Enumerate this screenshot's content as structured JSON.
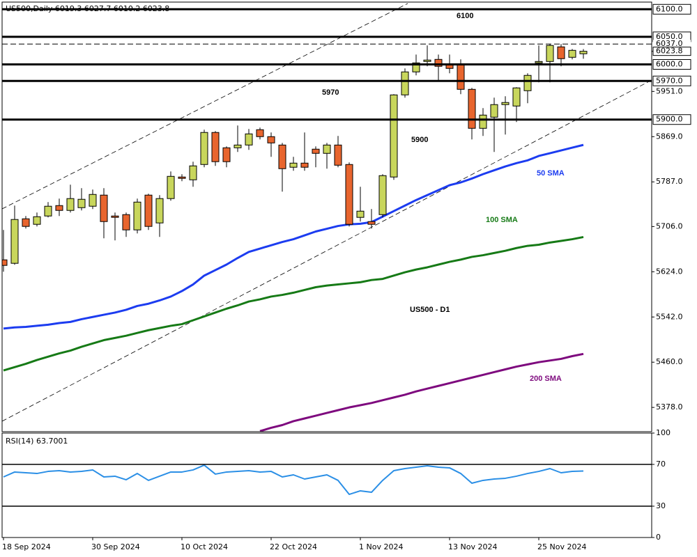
{
  "chart_data": [
    {
      "type": "candlestick",
      "header": "US500,Daily  6019.3 6027.7 6010.2 6023.8",
      "title": "US500 - D1",
      "annotations": [
        "6100",
        "5970",
        "5900"
      ],
      "categories": [
        "18 Sep 2024",
        null,
        null,
        null,
        null,
        null,
        null,
        null,
        "30 Sep 2024",
        null,
        null,
        null,
        null,
        null,
        null,
        null,
        "10 Oct 2024",
        null,
        null,
        null,
        null,
        null,
        null,
        null,
        "22 Oct 2024",
        null,
        null,
        null,
        null,
        null,
        null,
        null,
        "1 Nov 2024",
        null,
        null,
        null,
        null,
        null,
        null,
        null,
        "13 Nov 2024",
        null,
        null,
        null,
        null,
        null,
        null,
        null,
        "25 Nov 2024",
        null,
        null,
        null,
        null
      ],
      "open": [
        5645.6,
        5639.3,
        5720.0,
        5710.0,
        5725.1,
        5744.0,
        5735.2,
        5740.2,
        5742.8,
        5763.0,
        5725.1,
        5727.6,
        5699.9,
        5763.0,
        5712.5,
        5756.7,
        5795.8,
        5790.7,
        5818.5,
        5876.6,
        5848.8,
        5848.8,
        5853.8,
        5881.6,
        5869.0,
        5853.8,
        5813.5,
        5821.0,
        5846.3,
        5838.7,
        5853.8,
        5818.5,
        5722.6,
        5715.0,
        5727.6,
        5795.8,
        5944.7,
        5986.4,
        6005.3,
        6009.1,
        5999.0,
        5999.0,
        5954.8,
        5884.1,
        5904.3,
        5927.1,
        5924.5,
        5952.3,
        6002.8,
        6005.3,
        6031.8,
        6012.9,
        6019.3
      ],
      "high": [
        5699.9,
        5744.0,
        5725.1,
        5731.4,
        5750.3,
        5756.7,
        5781.9,
        5775.6,
        5773.1,
        5775.6,
        5731.4,
        5731.4,
        5756.7,
        5765.5,
        5763.0,
        5805.9,
        5800.8,
        5823.6,
        5881.6,
        5879.1,
        5851.3,
        5889.2,
        5882.9,
        5885.4,
        5876.6,
        5857.6,
        5832.4,
        5876.6,
        5851.3,
        5857.6,
        5870.3,
        5822.3,
        5778.1,
        5737.7,
        5800.8,
        5946.0,
        5992.7,
        6017.9,
        6034.4,
        6017.9,
        6017.9,
        6009.1,
        5957.4,
        5920.8,
        5939.7,
        5942.2,
        5958.6,
        5983.9,
        6034.4,
        6036.9,
        6036.9,
        6028.0,
        6027.7
      ],
      "low": [
        5624.1,
        5636.7,
        5702.4,
        5706.2,
        5722.6,
        5725.1,
        5731.4,
        5735.2,
        5737.7,
        5684.7,
        5680.9,
        5687.2,
        5693.5,
        5699.9,
        5687.2,
        5752.9,
        5788.2,
        5778.1,
        5813.5,
        5816.0,
        5813.5,
        5841.2,
        5845.0,
        5864.0,
        5832.4,
        5769.3,
        5807.2,
        5807.2,
        5813.5,
        5810.9,
        5813.5,
        5706.2,
        5715.0,
        5702.4,
        5722.6,
        5790.7,
        5939.7,
        5980.1,
        5996.5,
        5971.2,
        5983.9,
        5946.0,
        5864.0,
        5870.3,
        5841.2,
        5872.8,
        5895.5,
        5929.6,
        5967.5,
        5967.5,
        5996.5,
        6009.1,
        6010.2
      ],
      "close": [
        5635.5,
        5718.8,
        5706.2,
        5723.8,
        5742.8,
        5735.2,
        5756.7,
        5755.4,
        5764.2,
        5715.0,
        5722.6,
        5699.9,
        5750.3,
        5706.2,
        5756.7,
        5797.0,
        5793.3,
        5816.0,
        5876.6,
        5823.6,
        5823.6,
        5853.8,
        5874.0,
        5869.0,
        5857.6,
        5810.9,
        5821.0,
        5813.5,
        5838.7,
        5853.8,
        5817.2,
        5710.0,
        5733.9,
        5710.0,
        5798.3,
        5944.7,
        5986.4,
        6002.8,
        6007.9,
        5996.5,
        5992.7,
        5954.8,
        5884.1,
        5908.1,
        5927.1,
        5930.9,
        5957.4,
        5980.1,
        6005.3,
        6034.4,
        6010.4,
        6025.5,
        6023.8
      ],
      "up_color": "#c8d65c",
      "down_color": "#e8652e",
      "series": [
        {
          "name": "50 SMA",
          "color": "#1c3cf0",
          "values": [
            5521,
            5523,
            5524,
            5526,
            5528,
            5531,
            5533,
            5538,
            5542,
            5546,
            5550,
            5555,
            5562,
            5566,
            5572,
            5579,
            5589,
            5601,
            5617,
            5627,
            5637,
            5649,
            5660,
            5666,
            5672,
            5678,
            5683,
            5690,
            5697,
            5702,
            5707,
            5710,
            5711,
            5714,
            5724,
            5734,
            5744,
            5754,
            5763,
            5772,
            5781,
            5786,
            5793,
            5801,
            5808,
            5815,
            5821,
            5826,
            5834,
            5839,
            5844,
            5849,
            5854
          ]
        },
        {
          "name": "100 SMA",
          "color": "#167a16",
          "values": [
            5445,
            5451,
            5457,
            5464,
            5470,
            5476,
            5481,
            5488,
            5494,
            5500,
            5504,
            5508,
            5513,
            5518,
            5522,
            5526,
            5529,
            5536,
            5543,
            5550,
            5557,
            5563,
            5570,
            5574,
            5579,
            5582,
            5586,
            5591,
            5596,
            5599,
            5601,
            5603,
            5605,
            5609,
            5611,
            5617,
            5623,
            5628,
            5632,
            5637,
            5642,
            5646,
            5651,
            5654,
            5658,
            5662,
            5667,
            5671,
            5673,
            5677,
            5680,
            5683,
            5687
          ]
        },
        {
          "name": "200 SMA",
          "color": "#7e0a7e",
          "values": [
            null,
            null,
            null,
            null,
            null,
            null,
            null,
            null,
            null,
            null,
            null,
            null,
            null,
            null,
            null,
            null,
            null,
            null,
            null,
            null,
            null,
            null,
            null,
            5335,
            5341,
            5346,
            5353,
            5358,
            5363,
            5368,
            5373,
            5378,
            5382,
            5386,
            5391,
            5396,
            5401,
            5407,
            5412,
            5417,
            5422,
            5427,
            5432,
            5437,
            5442,
            5447,
            5452,
            5456,
            5460,
            5463,
            5466,
            5471,
            5475
          ]
        }
      ],
      "ylim": [
        5334,
        6113
      ],
      "yticks": [
        {
          "value": 5378,
          "label": "5378.0"
        },
        {
          "value": 5460,
          "label": "5460.0"
        },
        {
          "value": 5542,
          "label": "5542.0"
        },
        {
          "value": 5624,
          "label": "5624.0"
        },
        {
          "value": 5706,
          "label": "5706.0"
        },
        {
          "value": 5787,
          "label": "5787.0"
        },
        {
          "value": 5869,
          "label": "5869.0"
        },
        {
          "value": 5951,
          "label": "5951.0"
        }
      ],
      "levels": [
        {
          "value": 6100,
          "label": "6100.0"
        },
        {
          "value": 6050,
          "label": "6050.0"
        },
        {
          "value": 6000,
          "label": "6000.0"
        },
        {
          "value": 5970,
          "label": "5970.0"
        },
        {
          "value": 5900,
          "label": "5900.0"
        }
      ],
      "price_lines": [
        {
          "value": 6037,
          "label": "6037.0"
        },
        {
          "value": 6023.8,
          "label": "6023.8"
        }
      ]
    },
    {
      "type": "line",
      "title": "RSI(14) 63.7001",
      "series": [
        {
          "color": "#2b8fe6",
          "values": [
            58.0,
            62.7,
            62.0,
            61.3,
            63.3,
            64.0,
            62.7,
            63.3,
            64.7,
            58.0,
            58.7,
            55.3,
            61.3,
            54.7,
            58.7,
            62.7,
            62.7,
            64.7,
            69.3,
            60.7,
            62.7,
            63.3,
            64.0,
            62.7,
            63.3,
            58.0,
            60.0,
            56.0,
            58.0,
            60.0,
            54.7,
            41.3,
            44.7,
            43.3,
            54.7,
            64.0,
            66.0,
            67.3,
            68.7,
            67.3,
            66.7,
            61.3,
            52.0,
            54.7,
            56.0,
            56.7,
            58.7,
            61.3,
            63.3,
            66.0,
            62.0,
            63.3,
            63.7
          ]
        }
      ],
      "ylim": [
        0,
        100
      ],
      "yticks": [
        0,
        30,
        70,
        100
      ],
      "levels": [
        30,
        70
      ]
    }
  ]
}
